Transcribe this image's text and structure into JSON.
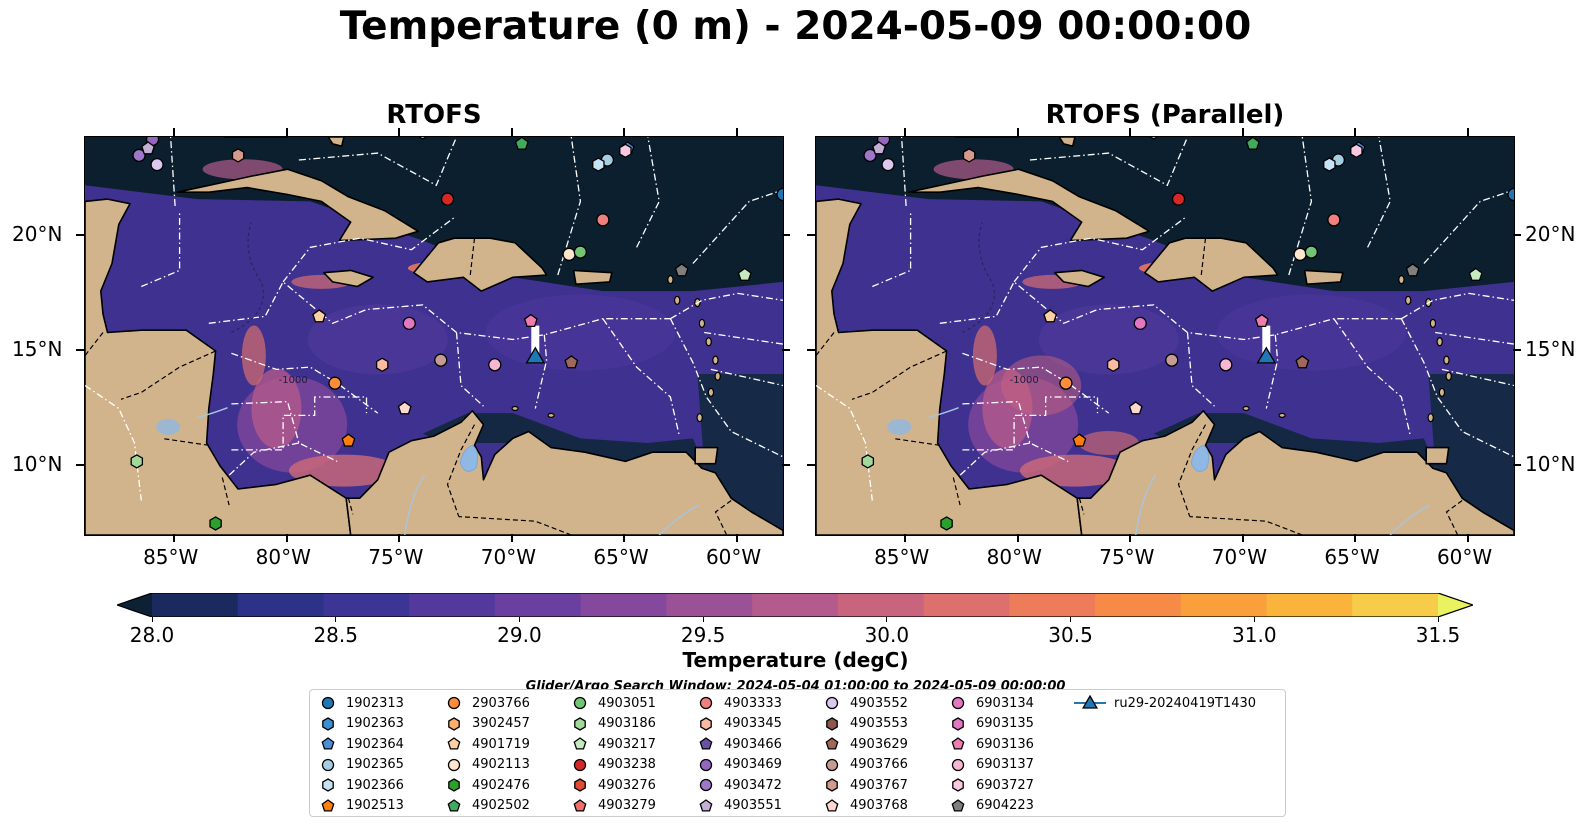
{
  "title": "Temperature (0 m) - 2024-05-09 00:00:00",
  "panels": [
    {
      "title": "RTOFS"
    },
    {
      "title": "RTOFS (Parallel)"
    }
  ],
  "axes": {
    "lon_ticks": [
      "85°W",
      "80°W",
      "75°W",
      "70°W",
      "65°W",
      "60°W"
    ],
    "lat_ticks": [
      "20°N",
      "15°N",
      "10°N"
    ]
  },
  "colorbar": {
    "label": "Temperature (degC)",
    "ticks": [
      "28.0",
      "28.5",
      "29.0",
      "29.5",
      "30.0",
      "30.5",
      "31.0",
      "31.5"
    ],
    "range": [
      28.0,
      31.5
    ],
    "colors": [
      "#0d2135",
      "#1a2a5e",
      "#2c3288",
      "#3d3596",
      "#54399d",
      "#6b3f9f",
      "#84489c",
      "#9b5196",
      "#b25b8c",
      "#c9647e",
      "#dd6f6e",
      "#ec7c5a",
      "#f58b47",
      "#f99f3c",
      "#fab43c",
      "#f6cc48",
      "#eaf25f"
    ]
  },
  "search_window": "Glider/Argo Search Window: 2024-05-04 01:00:00 to 2024-05-09 00:00:00",
  "chart_data": {
    "type": "heatmap",
    "variable": "Temperature",
    "units": "degC",
    "depth": "0 m",
    "time": "2024-05-09 00:00:00",
    "lon_range": [
      -89,
      -58
    ],
    "lat_range": [
      7,
      24.3
    ],
    "vmin": 28.0,
    "vmax": 31.5,
    "floats": [
      {
        "id": "1902313",
        "lon": -58.0,
        "lat": 21.8,
        "marker": "circle",
        "color": "#1f77b4"
      },
      {
        "id": "1902363",
        "lon": -66.0,
        "lat": 25.0,
        "marker": "hexagon",
        "color": "#3a8fd0"
      },
      {
        "id": "1902364",
        "lon": -64.9,
        "lat": 23.8,
        "marker": "pentagon",
        "color": "#4a90d9"
      },
      {
        "id": "1902365",
        "lon": -65.8,
        "lat": 23.3,
        "marker": "circle",
        "color": "#a6cee3"
      },
      {
        "id": "1902366",
        "lon": -66.2,
        "lat": 23.1,
        "marker": "hexagon",
        "color": "#c6e2f5"
      },
      {
        "id": "1902513",
        "lon": -77.3,
        "lat": 11.1,
        "marker": "pentagon",
        "color": "#ff7f0e"
      },
      {
        "id": "2903766",
        "lon": -77.9,
        "lat": 13.6,
        "marker": "circle",
        "color": "#fd8d3c"
      },
      {
        "id": "3902457",
        "lon": -74.0,
        "lat": 24.5,
        "marker": "hexagon",
        "color": "#fdae6b"
      },
      {
        "id": "4901719",
        "lon": -78.6,
        "lat": 16.5,
        "marker": "pentagon",
        "color": "#fdd0a2"
      },
      {
        "id": "4902113",
        "lon": -67.5,
        "lat": 19.2,
        "marker": "circle",
        "color": "#fee6ce"
      },
      {
        "id": "4902476",
        "lon": -83.2,
        "lat": 7.5,
        "marker": "hexagon",
        "color": "#2ca02c"
      },
      {
        "id": "4902502",
        "lon": -69.6,
        "lat": 24.0,
        "marker": "pentagon",
        "color": "#41ab5d"
      },
      {
        "id": "4903051",
        "lon": -67.0,
        "lat": 19.3,
        "marker": "circle",
        "color": "#74c476"
      },
      {
        "id": "4903186",
        "lon": -86.7,
        "lat": 10.2,
        "marker": "hexagon",
        "color": "#a1d99b"
      },
      {
        "id": "4903217",
        "lon": -59.7,
        "lat": 18.3,
        "marker": "pentagon",
        "color": "#c7e9c0"
      },
      {
        "id": "4903238",
        "lon": -72.9,
        "lat": 21.6,
        "marker": "circle",
        "color": "#d62728"
      },
      {
        "id": "4903276",
        "lon": -72.5,
        "lat": 25.2,
        "marker": "hexagon",
        "color": "#e34a33"
      },
      {
        "id": "4903279",
        "lon": -77.1,
        "lat": 25.3,
        "marker": "pentagon",
        "color": "#ef6f6c"
      },
      {
        "id": "4903333",
        "lon": -66.0,
        "lat": 20.7,
        "marker": "circle",
        "color": "#f08080"
      },
      {
        "id": "4903345",
        "lon": -75.8,
        "lat": 14.4,
        "marker": "hexagon",
        "color": "#fcbba1"
      },
      {
        "id": "4903466",
        "lon": -78.0,
        "lat": 26.0,
        "marker": "pentagon",
        "color": "#6a51a3"
      },
      {
        "id": "4903469",
        "lon": -86.0,
        "lat": 24.2,
        "marker": "circle",
        "color": "#9467bd"
      },
      {
        "id": "4903472",
        "lon": -86.6,
        "lat": 23.5,
        "marker": "circle",
        "color": "#9e77c9"
      },
      {
        "id": "4903551",
        "lon": -86.2,
        "lat": 23.8,
        "marker": "pentagon",
        "color": "#c5b0d5"
      },
      {
        "id": "4903552",
        "lon": -85.8,
        "lat": 23.1,
        "marker": "circle",
        "color": "#dac8ee"
      },
      {
        "id": "4903553",
        "lon": -75.5,
        "lat": 25.5,
        "marker": "hexagon",
        "color": "#8c564b"
      },
      {
        "id": "4903629",
        "lon": -67.4,
        "lat": 14.5,
        "marker": "pentagon",
        "color": "#a0685a"
      },
      {
        "id": "4903766",
        "lon": -73.2,
        "lat": 14.6,
        "marker": "circle",
        "color": "#c49c94"
      },
      {
        "id": "4903767",
        "lon": -82.2,
        "lat": 23.5,
        "marker": "hexagon",
        "color": "#d49a8b"
      },
      {
        "id": "4903768",
        "lon": -74.8,
        "lat": 12.5,
        "marker": "pentagon",
        "color": "#fbd9cf"
      },
      {
        "id": "6903134",
        "lon": -74.6,
        "lat": 16.2,
        "marker": "circle",
        "color": "#e377c2"
      },
      {
        "id": "6903135",
        "lon": -71.5,
        "lat": 25.0,
        "marker": "hexagon",
        "color": "#e377c2"
      },
      {
        "id": "6903136",
        "lon": -69.2,
        "lat": 16.3,
        "marker": "pentagon",
        "color": "#f17cb0"
      },
      {
        "id": "6903137",
        "lon": -70.8,
        "lat": 14.4,
        "marker": "circle",
        "color": "#f7b6d2"
      },
      {
        "id": "6903727",
        "lon": -65.0,
        "lat": 23.7,
        "marker": "hexagon",
        "color": "#fbc8e1"
      },
      {
        "id": "6904223",
        "lon": -62.5,
        "lat": 18.5,
        "marker": "pentagon",
        "color": "#7f7f7f"
      }
    ],
    "glider": {
      "id": "ru29-20240419T1430",
      "marker": "triangle",
      "color": "#1f77b4",
      "track": [
        [
          -69.0,
          16.1
        ],
        [
          -69.0,
          14.7
        ]
      ]
    }
  },
  "legend_items": [
    {
      "label": "1902313",
      "marker": "circle",
      "color": "#1f77b4"
    },
    {
      "label": "1902363",
      "marker": "hexagon",
      "color": "#3a8fd0"
    },
    {
      "label": "1902364",
      "marker": "pentagon",
      "color": "#4a90d9"
    },
    {
      "label": "1902365",
      "marker": "circle",
      "color": "#a6cee3"
    },
    {
      "label": "1902366",
      "marker": "hexagon",
      "color": "#c6e2f5"
    },
    {
      "label": "1902513",
      "marker": "pentagon",
      "color": "#ff7f0e"
    },
    {
      "label": "2903766",
      "marker": "circle",
      "color": "#fd8d3c"
    },
    {
      "label": "3902457",
      "marker": "hexagon",
      "color": "#fdae6b"
    },
    {
      "label": "4901719",
      "marker": "pentagon",
      "color": "#fdd0a2"
    },
    {
      "label": "4902113",
      "marker": "circle",
      "color": "#fee6ce"
    },
    {
      "label": "4902476",
      "marker": "hexagon",
      "color": "#2ca02c"
    },
    {
      "label": "4902502",
      "marker": "pentagon",
      "color": "#41ab5d"
    },
    {
      "label": "4903051",
      "marker": "circle",
      "color": "#74c476"
    },
    {
      "label": "4903186",
      "marker": "hexagon",
      "color": "#a1d99b"
    },
    {
      "label": "4903217",
      "marker": "pentagon",
      "color": "#c7e9c0"
    },
    {
      "label": "4903238",
      "marker": "circle",
      "color": "#d62728"
    },
    {
      "label": "4903276",
      "marker": "hexagon",
      "color": "#e34a33"
    },
    {
      "label": "4903279",
      "marker": "pentagon",
      "color": "#ef6f6c"
    },
    {
      "label": "4903333",
      "marker": "circle",
      "color": "#f08080"
    },
    {
      "label": "4903345",
      "marker": "hexagon",
      "color": "#fcbba1"
    },
    {
      "label": "4903466",
      "marker": "pentagon",
      "color": "#6a51a3"
    },
    {
      "label": "4903469",
      "marker": "circle",
      "color": "#9467bd"
    },
    {
      "label": "4903472",
      "marker": "circle",
      "color": "#9e77c9"
    },
    {
      "label": "4903551",
      "marker": "pentagon",
      "color": "#c5b0d5"
    },
    {
      "label": "4903552",
      "marker": "circle",
      "color": "#dac8ee"
    },
    {
      "label": "4903553",
      "marker": "hexagon",
      "color": "#8c564b"
    },
    {
      "label": "4903629",
      "marker": "pentagon",
      "color": "#a0685a"
    },
    {
      "label": "4903766",
      "marker": "circle",
      "color": "#c49c94"
    },
    {
      "label": "4903767",
      "marker": "hexagon",
      "color": "#d49a8b"
    },
    {
      "label": "4903768",
      "marker": "pentagon",
      "color": "#fbd9cf"
    },
    {
      "label": "6903134",
      "marker": "circle",
      "color": "#e377c2"
    },
    {
      "label": "6903135",
      "marker": "hexagon",
      "color": "#e377c2"
    },
    {
      "label": "6903136",
      "marker": "pentagon",
      "color": "#f17cb0"
    },
    {
      "label": "6903137",
      "marker": "circle",
      "color": "#f7b6d2"
    },
    {
      "label": "6903727",
      "marker": "hexagon",
      "color": "#fbc8e1"
    },
    {
      "label": "6904223",
      "marker": "pentagon",
      "color": "#7f7f7f"
    },
    {
      "label": "ru29-20240419T1430",
      "marker": "triangle-line",
      "color": "#1f77b4"
    }
  ],
  "colors": {
    "land": "#d2b48c",
    "deep_cold": "#0b1f2e",
    "basin": "#3f3190",
    "warm": "#e4705f",
    "lake": "#8fb8e4",
    "river": "#a8c4e0"
  }
}
